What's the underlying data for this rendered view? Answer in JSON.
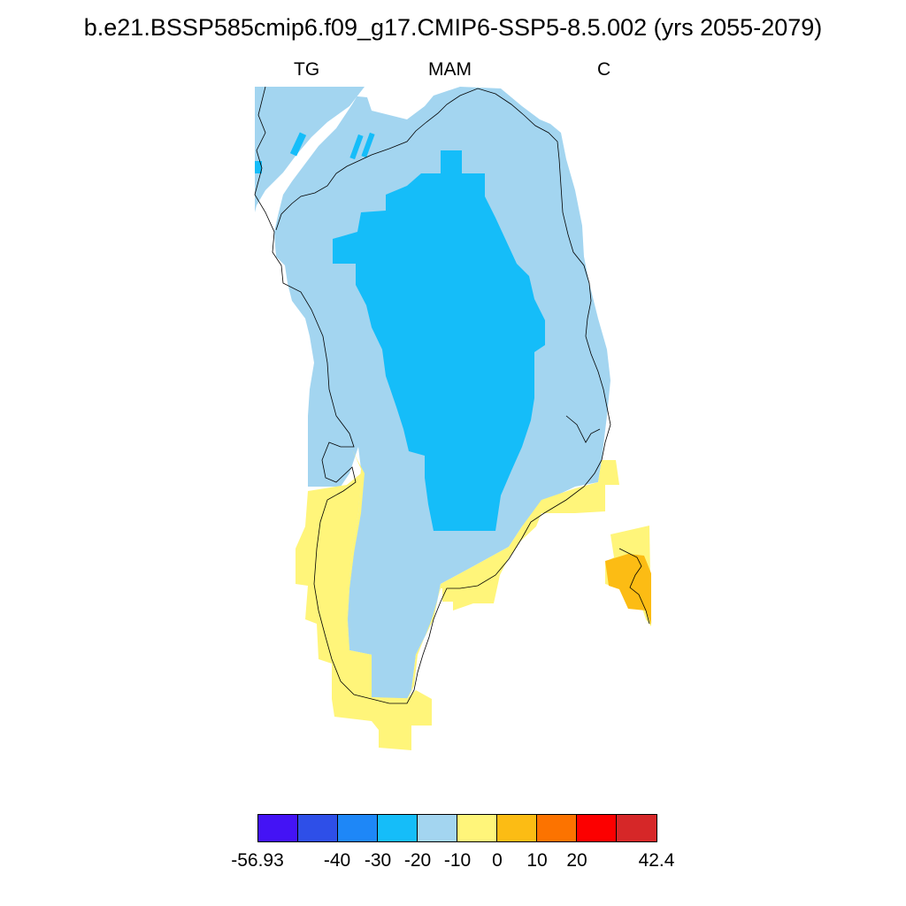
{
  "title": "b.e21.BSSP585cmip6.f09_g17.CMIP6-SSP5-8.5.002 (yrs 2055-2079)",
  "labels": {
    "left": "TG",
    "center": "MAM",
    "right": "C"
  },
  "colorbar": {
    "colors": [
      "#4413f5",
      "#2e4fe8",
      "#1e87f7",
      "#15bdf9",
      "#a3d5f0",
      "#fff57a",
      "#fcbc14",
      "#fc7300",
      "#fc0000",
      "#d62728"
    ],
    "tick_labels": [
      "-56.93",
      "-40",
      "-30",
      "-20",
      "-10",
      "0",
      "10",
      "20",
      "42.4"
    ]
  },
  "map": {
    "region": "Greenland",
    "category_colors": {
      "-30 to -20": "#15bdf9",
      "-20 to -10": "#a3d5f0",
      "-10 to 0": "#fff57a",
      "0 to 10": "#fcbc14"
    }
  }
}
